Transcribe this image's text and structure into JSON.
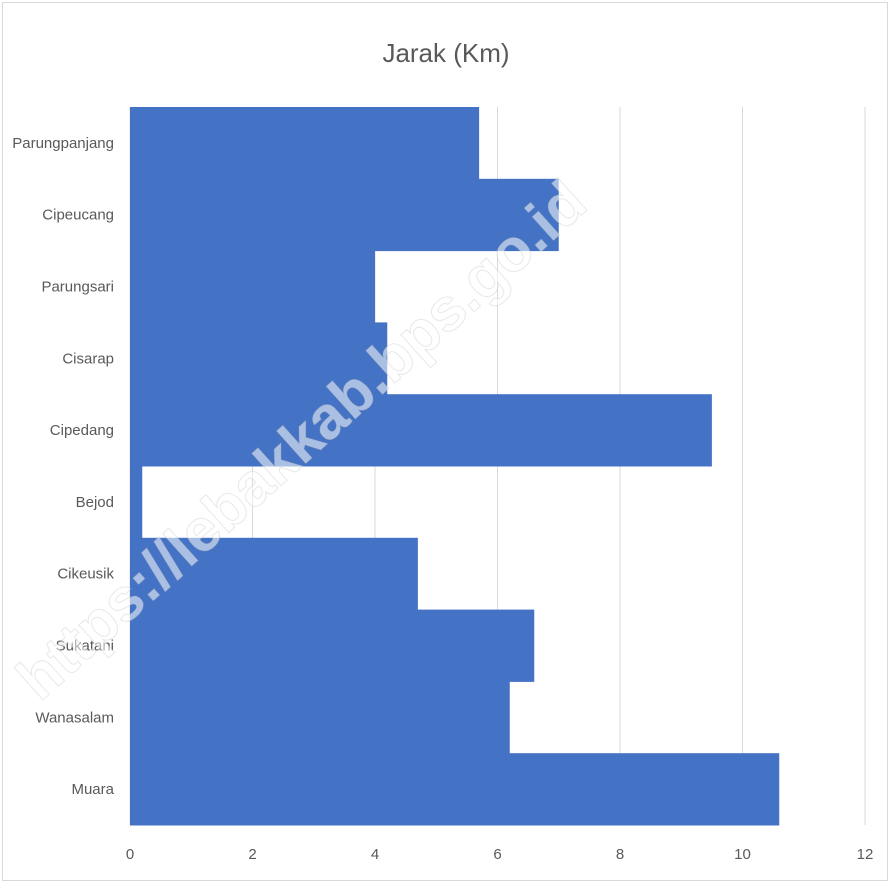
{
  "chart_data": {
    "type": "bar",
    "orientation": "horizontal",
    "title": "Jarak (Km)",
    "xlabel": "",
    "ylabel": "",
    "categories": [
      "Parungpanjang",
      "Cipeucang",
      "Parungsari",
      "Cisarap",
      "Cipedang",
      "Bejod",
      "Cikeusik",
      "Sukatani",
      "Wanasalam",
      "Muara"
    ],
    "values": [
      5.7,
      7.0,
      4.0,
      4.2,
      9.5,
      0.2,
      4.7,
      6.6,
      6.2,
      10.6
    ],
    "xlim": [
      0,
      12
    ],
    "xticks": [
      0,
      2,
      4,
      6,
      8,
      10,
      12
    ],
    "grid": "vertical",
    "legend": "none",
    "bar_color": "#4472c4"
  },
  "watermark": "https://lebakkab.bps.go.id"
}
